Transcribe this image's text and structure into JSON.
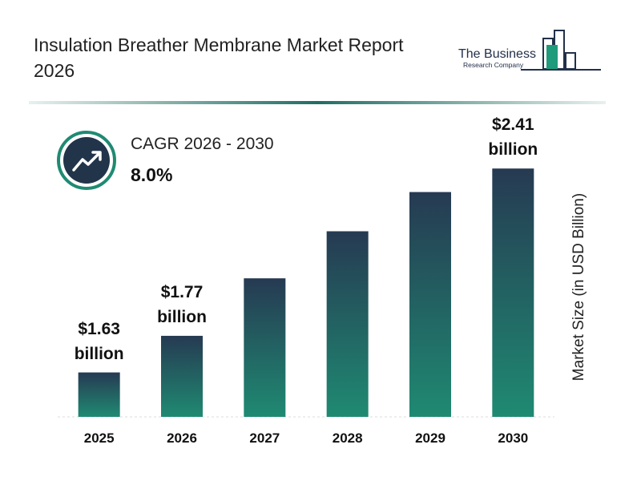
{
  "title": "Insulation Breather Membrane Market Report 2026",
  "logo": {
    "line1": "The Business",
    "line2": "Research Company"
  },
  "cagr": {
    "label": "CAGR 2026 - 2030",
    "value": "8.0%"
  },
  "chart_data": {
    "type": "bar",
    "categories": [
      "2025",
      "2026",
      "2027",
      "2028",
      "2029",
      "2030"
    ],
    "values": [
      1.63,
      1.77,
      1.99,
      2.17,
      2.32,
      2.41
    ],
    "value_labels": [
      "$1.63 billion",
      "$1.77 billion",
      null,
      null,
      null,
      "$2.41 billion"
    ],
    "ylabel": "Market Size (in USD Billion)",
    "ylim": [
      1.46,
      2.61
    ],
    "colors": [
      "#263a52",
      "#1f8a72"
    ]
  }
}
